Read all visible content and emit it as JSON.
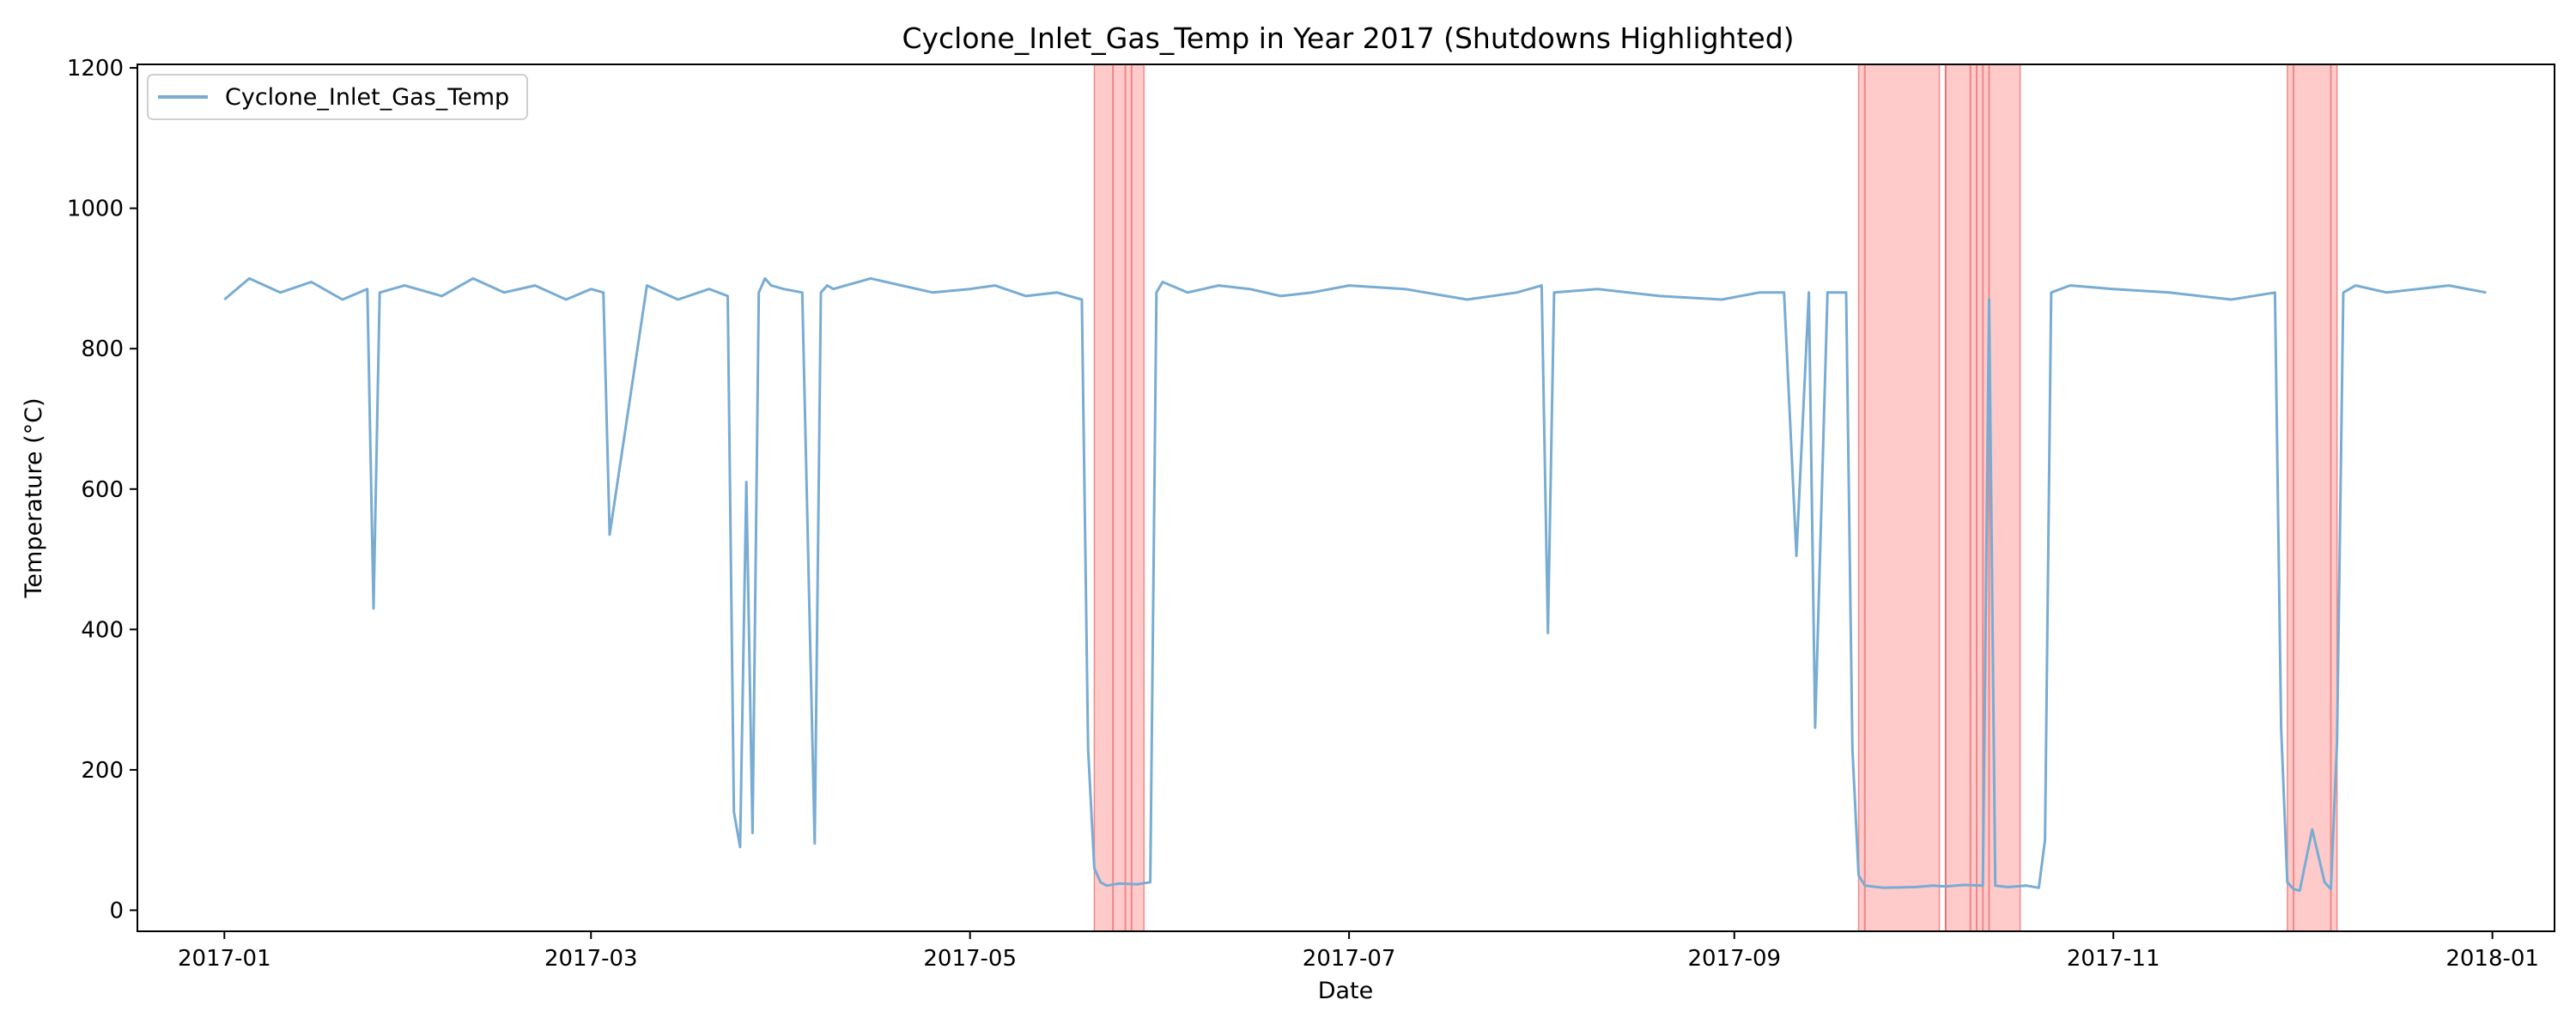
{
  "chart_data": {
    "type": "line",
    "title": "Cyclone_Inlet_Gas_Temp in Year 2017 (Shutdowns Highlighted)",
    "xlabel": "Date",
    "ylabel": "Temperature (°C)",
    "xlim": [
      "2016-12-18",
      "2018-01-11"
    ],
    "ylim": [
      -30,
      1205
    ],
    "y_ticks": [
      0,
      200,
      400,
      600,
      800,
      1000,
      1200
    ],
    "x_ticks": [
      "2017-01",
      "2017-03",
      "2017-05",
      "2017-07",
      "2017-09",
      "2017-11",
      "2018-01"
    ],
    "grid": false,
    "legend_position": "top-left",
    "colors": {
      "series": "#78acd3",
      "shutdown_fill": "#ff9f9f",
      "shutdown_edge": "#e05252"
    },
    "series": [
      {
        "name": "Cyclone_Inlet_Gas_Temp",
        "x": [
          "2017-01-01",
          "2017-01-05",
          "2017-01-10",
          "2017-01-15",
          "2017-01-20",
          "2017-01-24",
          "2017-01-25",
          "2017-01-26",
          "2017-01-30",
          "2017-02-05",
          "2017-02-10",
          "2017-02-15",
          "2017-02-20",
          "2017-02-25",
          "2017-03-01",
          "2017-03-03",
          "2017-03-04",
          "2017-03-10",
          "2017-03-15",
          "2017-03-20",
          "2017-03-23",
          "2017-03-24",
          "2017-03-25",
          "2017-03-26",
          "2017-03-27",
          "2017-03-28",
          "2017-03-29",
          "2017-03-30",
          "2017-04-01",
          "2017-04-04",
          "2017-04-06",
          "2017-04-07",
          "2017-04-08",
          "2017-04-09",
          "2017-04-15",
          "2017-04-20",
          "2017-04-25",
          "2017-05-01",
          "2017-05-05",
          "2017-05-10",
          "2017-05-15",
          "2017-05-19",
          "2017-05-20",
          "2017-05-21",
          "2017-05-22",
          "2017-05-23",
          "2017-05-25",
          "2017-05-28",
          "2017-05-30",
          "2017-05-31",
          "2017-06-01",
          "2017-06-05",
          "2017-06-10",
          "2017-06-15",
          "2017-06-20",
          "2017-06-25",
          "2017-07-01",
          "2017-07-10",
          "2017-07-20",
          "2017-07-28",
          "2017-08-01",
          "2017-08-02",
          "2017-08-03",
          "2017-08-10",
          "2017-08-20",
          "2017-08-30",
          "2017-09-05",
          "2017-09-09",
          "2017-09-11",
          "2017-09-13",
          "2017-09-14",
          "2017-09-16",
          "2017-09-19",
          "2017-09-20",
          "2017-09-21",
          "2017-09-22",
          "2017-09-25",
          "2017-09-30",
          "2017-10-03",
          "2017-10-05",
          "2017-10-08",
          "2017-10-11",
          "2017-10-12",
          "2017-10-13",
          "2017-10-15",
          "2017-10-18",
          "2017-10-20",
          "2017-10-21",
          "2017-10-22",
          "2017-10-25",
          "2017-11-01",
          "2017-11-10",
          "2017-11-20",
          "2017-11-27",
          "2017-11-28",
          "2017-11-29",
          "2017-11-30",
          "2017-12-01",
          "2017-12-03",
          "2017-12-05",
          "2017-12-06",
          "2017-12-07",
          "2017-12-08",
          "2017-12-10",
          "2017-12-15",
          "2017-12-20",
          "2017-12-25",
          "2017-12-31"
        ],
        "y": [
          870,
          900,
          880,
          895,
          870,
          885,
          430,
          880,
          890,
          875,
          900,
          880,
          890,
          870,
          885,
          880,
          535,
          890,
          870,
          885,
          875,
          140,
          90,
          610,
          110,
          880,
          900,
          890,
          885,
          880,
          95,
          880,
          890,
          885,
          900,
          890,
          880,
          885,
          890,
          875,
          880,
          870,
          230,
          60,
          40,
          35,
          38,
          37,
          40,
          880,
          895,
          880,
          890,
          885,
          875,
          880,
          890,
          885,
          870,
          880,
          890,
          395,
          880,
          885,
          875,
          870,
          880,
          880,
          505,
          880,
          260,
          880,
          880,
          230,
          50,
          35,
          32,
          33,
          35,
          34,
          36,
          35,
          870,
          35,
          33,
          35,
          32,
          100,
          880,
          890,
          885,
          880,
          870,
          880,
          260,
          40,
          30,
          28,
          115,
          40,
          30,
          240,
          880,
          890,
          880,
          885,
          890,
          880
        ]
      }
    ],
    "shutdown_periods": [
      [
        "2017-05-21",
        "2017-05-29"
      ],
      [
        "2017-09-21",
        "2017-10-04"
      ],
      [
        "2017-10-05",
        "2017-10-17"
      ],
      [
        "2017-11-29",
        "2017-12-07"
      ]
    ],
    "shutdown_markers": [
      "2017-05-24",
      "2017-05-26",
      "2017-05-27",
      "2017-09-22",
      "2017-10-05",
      "2017-10-09",
      "2017-10-10",
      "2017-10-11",
      "2017-10-12",
      "2017-11-30",
      "2017-12-06"
    ]
  }
}
